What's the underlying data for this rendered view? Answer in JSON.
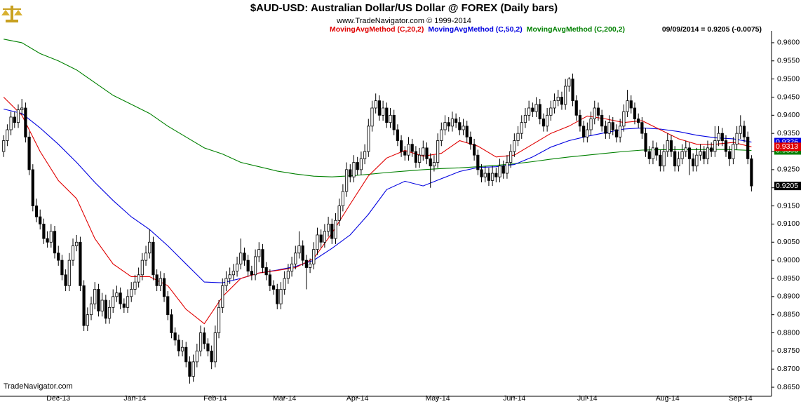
{
  "chart_data": {
    "type": "candlestick",
    "title": "$AUD-USD:  Australian Dollar/US Dollar @ FOREX  (Daily bars)",
    "subtitle": "www.TradeNavigator.com © 1999-2014",
    "status": "09/09/2014 = 0.9205 (-0.0075)",
    "footer": "TradeNavigator.com",
    "up_color": "#ffffff",
    "down_color": "#000000",
    "xlim": [
      -1,
      210.5
    ],
    "ylim": [
      0.8625,
      0.9625
    ],
    "xticks": [
      {
        "value": 15,
        "label": "Dec-13"
      },
      {
        "value": 36,
        "label": "Jan-14"
      },
      {
        "value": 58,
        "label": "Feb-14"
      },
      {
        "value": 77,
        "label": "Mar-14"
      },
      {
        "value": 97,
        "label": "Apr-14"
      },
      {
        "value": 119,
        "label": "May-14"
      },
      {
        "value": 140,
        "label": "Jun-14"
      },
      {
        "value": 160,
        "label": "Jul-14"
      },
      {
        "value": 182,
        "label": "Aug-14"
      },
      {
        "value": 202,
        "label": "Sep-14"
      }
    ],
    "yticks": [
      {
        "value": 0.865,
        "label": "0.8650"
      },
      {
        "value": 0.87,
        "label": "0.8700"
      },
      {
        "value": 0.875,
        "label": "0.8750"
      },
      {
        "value": 0.88,
        "label": "0.8800"
      },
      {
        "value": 0.885,
        "label": "0.8850"
      },
      {
        "value": 0.89,
        "label": "0.8900"
      },
      {
        "value": 0.895,
        "label": "0.8950"
      },
      {
        "value": 0.9,
        "label": "0.9000"
      },
      {
        "value": 0.905,
        "label": "0.9050"
      },
      {
        "value": 0.91,
        "label": "0.9100"
      },
      {
        "value": 0.915,
        "label": "0.9150"
      },
      {
        "value": 0.92,
        "label": "0.9200"
      },
      {
        "value": 0.925,
        "label": "0.9250"
      },
      {
        "value": 0.93,
        "label": "0.9300"
      },
      {
        "value": 0.935,
        "label": "0.9350"
      },
      {
        "value": 0.94,
        "label": "0.9400"
      },
      {
        "value": 0.945,
        "label": "0.9450"
      },
      {
        "value": 0.95,
        "label": "0.9500"
      },
      {
        "value": 0.955,
        "label": "0.9550"
      },
      {
        "value": 0.96,
        "label": "0.9600"
      }
    ],
    "open": [
      0.93,
      0.933,
      0.936,
      0.9395,
      0.938,
      0.9415,
      0.942,
      0.934,
      0.925,
      0.915,
      0.912,
      0.91,
      0.906,
      0.905,
      0.908,
      0.902,
      0.9,
      0.896,
      0.893,
      0.9,
      0.904,
      0.905,
      0.893,
      0.882,
      0.885,
      0.888,
      0.892,
      0.886,
      0.889,
      0.884,
      0.887,
      0.89,
      0.891,
      0.888,
      0.887,
      0.89,
      0.892,
      0.894,
      0.896,
      0.9,
      0.902,
      0.905,
      0.896,
      0.893,
      0.895,
      0.89,
      0.885,
      0.88,
      0.878,
      0.875,
      0.876,
      0.872,
      0.868,
      0.872,
      0.875,
      0.88,
      0.877,
      0.875,
      0.872,
      0.88,
      0.887,
      0.893,
      0.895,
      0.896,
      0.897,
      0.899,
      0.902,
      0.9,
      0.897,
      0.896,
      0.901,
      0.903,
      0.898,
      0.896,
      0.893,
      0.892,
      0.888,
      0.892,
      0.895,
      0.897,
      0.899,
      0.902,
      0.904,
      0.9,
      0.898,
      0.899,
      0.903,
      0.907,
      0.905,
      0.908,
      0.91,
      0.906,
      0.911,
      0.915,
      0.919,
      0.925,
      0.923,
      0.927,
      0.925,
      0.928,
      0.93,
      0.937,
      0.942,
      0.944,
      0.94,
      0.942,
      0.938,
      0.94,
      0.936,
      0.933,
      0.93,
      0.929,
      0.932,
      0.93,
      0.927,
      0.929,
      0.931,
      0.928,
      0.926,
      0.927,
      0.933,
      0.936,
      0.938,
      0.937,
      0.939,
      0.938,
      0.936,
      0.937,
      0.934,
      0.932,
      0.929,
      0.925,
      0.923,
      0.924,
      0.922,
      0.924,
      0.923,
      0.926,
      0.924,
      0.927,
      0.93,
      0.933,
      0.935,
      0.938,
      0.94,
      0.942,
      0.941,
      0.943,
      0.939,
      0.937,
      0.94,
      0.942,
      0.944,
      0.945,
      0.943,
      0.948,
      0.95,
      0.944,
      0.94,
      0.937,
      0.934,
      0.936,
      0.939,
      0.942,
      0.94,
      0.937,
      0.935,
      0.938,
      0.936,
      0.934,
      0.937,
      0.941,
      0.944,
      0.942,
      0.939,
      0.938,
      0.935,
      0.93,
      0.928,
      0.931,
      0.929,
      0.926,
      0.93,
      0.933,
      0.93,
      0.926,
      0.928,
      0.93,
      0.931,
      0.928,
      0.926,
      0.929,
      0.93,
      0.928,
      0.931,
      0.93,
      0.933,
      0.935,
      0.933,
      0.93,
      0.928,
      0.932,
      0.935,
      0.937,
      0.934,
      0.928
    ],
    "high": [
      0.9345,
      0.9375,
      0.941,
      0.941,
      0.943,
      0.9445,
      0.9435,
      0.9355,
      0.9265,
      0.917,
      0.914,
      0.9115,
      0.908,
      0.91,
      0.9095,
      0.904,
      0.9015,
      0.8975,
      0.902,
      0.906,
      0.907,
      0.9065,
      0.8945,
      0.887,
      0.89,
      0.894,
      0.8935,
      0.891,
      0.8905,
      0.889,
      0.892,
      0.893,
      0.8925,
      0.8895,
      0.892,
      0.894,
      0.896,
      0.898,
      0.902,
      0.904,
      0.9085,
      0.9065,
      0.8975,
      0.897,
      0.8965,
      0.8915,
      0.8865,
      0.8815,
      0.8795,
      0.878,
      0.8775,
      0.8735,
      0.874,
      0.877,
      0.882,
      0.8815,
      0.8785,
      0.8765,
      0.882,
      0.889,
      0.895,
      0.897,
      0.898,
      0.899,
      0.901,
      0.906,
      0.9035,
      0.9015,
      0.8985,
      0.903,
      0.905,
      0.9045,
      0.8995,
      0.8975,
      0.8945,
      0.8935,
      0.894,
      0.897,
      0.899,
      0.901,
      0.904,
      0.908,
      0.9055,
      0.9015,
      0.9005,
      0.905,
      0.909,
      0.9085,
      0.91,
      0.912,
      0.9115,
      0.913,
      0.917,
      0.921,
      0.927,
      0.9265,
      0.929,
      0.9285,
      0.93,
      0.932,
      0.939,
      0.944,
      0.946,
      0.9455,
      0.944,
      0.9435,
      0.942,
      0.9415,
      0.9375,
      0.9345,
      0.9315,
      0.934,
      0.9335,
      0.9315,
      0.931,
      0.933,
      0.9325,
      0.9295,
      0.929,
      0.935,
      0.938,
      0.94,
      0.9395,
      0.941,
      0.9405,
      0.9395,
      0.939,
      0.9385,
      0.9355,
      0.9335,
      0.9305,
      0.9265,
      0.926,
      0.9255,
      0.926,
      0.9255,
      0.928,
      0.9275,
      0.929,
      0.932,
      0.935,
      0.937,
      0.94,
      0.942,
      0.944,
      0.9435,
      0.945,
      0.9445,
      0.9405,
      0.942,
      0.944,
      0.946,
      0.947,
      0.9465,
      0.95,
      0.9505,
      0.9515,
      0.9455,
      0.9415,
      0.9385,
      0.938,
      0.941,
      0.944,
      0.9435,
      0.9415,
      0.9385,
      0.94,
      0.9395,
      0.9375,
      0.939,
      0.943,
      0.947,
      0.9455,
      0.9435,
      0.9405,
      0.9395,
      0.9365,
      0.9315,
      0.933,
      0.9325,
      0.9305,
      0.932,
      0.935,
      0.9345,
      0.9315,
      0.93,
      0.932,
      0.933,
      0.9325,
      0.9295,
      0.931,
      0.932,
      0.9315,
      0.933,
      0.9325,
      0.937,
      0.937,
      0.9365,
      0.9345,
      0.9315,
      0.934,
      0.937,
      0.94,
      0.9385,
      0.9355,
      0.929
    ],
    "low": [
      0.9285,
      0.9315,
      0.9345,
      0.9365,
      0.9365,
      0.94,
      0.9325,
      0.9235,
      0.9135,
      0.9105,
      0.9085,
      0.9045,
      0.9035,
      0.9035,
      0.9005,
      0.8985,
      0.8945,
      0.8915,
      0.8915,
      0.8985,
      0.9025,
      0.8915,
      0.8805,
      0.8805,
      0.8835,
      0.8865,
      0.8845,
      0.8845,
      0.8825,
      0.8825,
      0.8855,
      0.8885,
      0.8865,
      0.8855,
      0.8855,
      0.8885,
      0.8905,
      0.8925,
      0.8945,
      0.8985,
      0.9005,
      0.8945,
      0.8915,
      0.8915,
      0.8885,
      0.8835,
      0.8785,
      0.8765,
      0.8735,
      0.8735,
      0.8705,
      0.866,
      0.8665,
      0.8705,
      0.8735,
      0.8755,
      0.8735,
      0.87,
      0.8705,
      0.8785,
      0.8855,
      0.8915,
      0.8935,
      0.8945,
      0.8955,
      0.8975,
      0.8985,
      0.8955,
      0.8945,
      0.8945,
      0.8995,
      0.8965,
      0.8945,
      0.8915,
      0.8905,
      0.8865,
      0.8865,
      0.8905,
      0.8935,
      0.8955,
      0.8975,
      0.9005,
      0.8985,
      0.892,
      0.8965,
      0.8975,
      0.9015,
      0.9035,
      0.9035,
      0.9065,
      0.9045,
      0.9045,
      0.9095,
      0.9135,
      0.9175,
      0.9215,
      0.9215,
      0.9235,
      0.9235,
      0.9265,
      0.9285,
      0.9355,
      0.9405,
      0.9385,
      0.9385,
      0.9365,
      0.9365,
      0.9345,
      0.9315,
      0.9285,
      0.9275,
      0.9275,
      0.9285,
      0.9255,
      0.9255,
      0.9275,
      0.9265,
      0.92,
      0.9245,
      0.9255,
      0.9315,
      0.9345,
      0.9355,
      0.9355,
      0.9365,
      0.9345,
      0.9345,
      0.9325,
      0.9305,
      0.9275,
      0.9235,
      0.9215,
      0.9215,
      0.9205,
      0.9205,
      0.9215,
      0.9215,
      0.9225,
      0.9225,
      0.9255,
      0.9285,
      0.9315,
      0.9335,
      0.9365,
      0.9385,
      0.9395,
      0.9395,
      0.9375,
      0.9355,
      0.9355,
      0.9385,
      0.9405,
      0.9425,
      0.9415,
      0.9415,
      0.9465,
      0.9425,
      0.9385,
      0.9355,
      0.9325,
      0.9325,
      0.9345,
      0.9375,
      0.9385,
      0.9355,
      0.9335,
      0.9335,
      0.9345,
      0.9325,
      0.9325,
      0.9355,
      0.9395,
      0.9405,
      0.9375,
      0.9365,
      0.9335,
      0.9285,
      0.9265,
      0.9265,
      0.9275,
      0.9245,
      0.9245,
      0.9285,
      0.9285,
      0.9245,
      0.9245,
      0.9265,
      0.9285,
      0.9235,
      0.9245,
      0.9245,
      0.9275,
      0.9265,
      0.9265,
      0.9285,
      0.9285,
      0.9315,
      0.9315,
      0.9285,
      0.926,
      0.9265,
      0.9305,
      0.9335,
      0.9325,
      0.9265,
      0.919
    ],
    "close": [
      0.933,
      0.936,
      0.9395,
      0.938,
      0.9415,
      0.942,
      0.934,
      0.925,
      0.915,
      0.912,
      0.91,
      0.906,
      0.905,
      0.908,
      0.902,
      0.9,
      0.896,
      0.893,
      0.9,
      0.904,
      0.905,
      0.893,
      0.882,
      0.885,
      0.888,
      0.892,
      0.886,
      0.889,
      0.884,
      0.887,
      0.89,
      0.891,
      0.888,
      0.887,
      0.89,
      0.892,
      0.894,
      0.896,
      0.9,
      0.902,
      0.905,
      0.896,
      0.893,
      0.895,
      0.89,
      0.885,
      0.88,
      0.878,
      0.875,
      0.876,
      0.872,
      0.868,
      0.872,
      0.875,
      0.88,
      0.877,
      0.875,
      0.872,
      0.88,
      0.887,
      0.893,
      0.895,
      0.896,
      0.897,
      0.899,
      0.902,
      0.9,
      0.897,
      0.896,
      0.901,
      0.903,
      0.898,
      0.896,
      0.893,
      0.892,
      0.888,
      0.892,
      0.895,
      0.897,
      0.899,
      0.902,
      0.904,
      0.9,
      0.898,
      0.899,
      0.903,
      0.907,
      0.905,
      0.908,
      0.91,
      0.906,
      0.911,
      0.915,
      0.919,
      0.925,
      0.923,
      0.927,
      0.925,
      0.928,
      0.93,
      0.937,
      0.942,
      0.944,
      0.94,
      0.942,
      0.938,
      0.94,
      0.936,
      0.933,
      0.93,
      0.929,
      0.932,
      0.93,
      0.927,
      0.929,
      0.931,
      0.928,
      0.926,
      0.927,
      0.933,
      0.936,
      0.938,
      0.937,
      0.939,
      0.938,
      0.936,
      0.937,
      0.934,
      0.932,
      0.929,
      0.925,
      0.923,
      0.924,
      0.922,
      0.924,
      0.923,
      0.926,
      0.924,
      0.927,
      0.93,
      0.933,
      0.935,
      0.938,
      0.94,
      0.942,
      0.941,
      0.943,
      0.939,
      0.937,
      0.94,
      0.942,
      0.944,
      0.945,
      0.943,
      0.948,
      0.95,
      0.944,
      0.94,
      0.937,
      0.934,
      0.936,
      0.939,
      0.942,
      0.94,
      0.937,
      0.935,
      0.938,
      0.936,
      0.934,
      0.937,
      0.941,
      0.944,
      0.942,
      0.939,
      0.938,
      0.935,
      0.93,
      0.928,
      0.931,
      0.929,
      0.926,
      0.93,
      0.933,
      0.93,
      0.926,
      0.928,
      0.93,
      0.931,
      0.928,
      0.926,
      0.929,
      0.93,
      0.928,
      0.931,
      0.93,
      0.933,
      0.935,
      0.933,
      0.93,
      0.928,
      0.932,
      0.935,
      0.937,
      0.934,
      0.928,
      0.9205
    ],
    "series": [
      {
        "name": "MovingAvgMethod (C,200,2)",
        "color": "#008000",
        "x": [
          0,
          5,
          10,
          15,
          20,
          25,
          30,
          35,
          40,
          45,
          50,
          55,
          60,
          65,
          70,
          75,
          80,
          85,
          90,
          95,
          100,
          105,
          110,
          115,
          120,
          125,
          130,
          135,
          140,
          145,
          150,
          155,
          160,
          165,
          170,
          175,
          180,
          185,
          190,
          195,
          200,
          205
        ],
        "values": [
          0.961,
          0.96,
          0.957,
          0.955,
          0.9525,
          0.949,
          0.9455,
          0.943,
          0.9405,
          0.937,
          0.934,
          0.931,
          0.9293,
          0.927,
          0.9258,
          0.9246,
          0.9238,
          0.9232,
          0.923,
          0.9233,
          0.9237,
          0.9242,
          0.9246,
          0.925,
          0.9253,
          0.9255,
          0.9258,
          0.9262,
          0.9266,
          0.9272,
          0.9279,
          0.9285,
          0.929,
          0.9295,
          0.93,
          0.9304,
          0.9305,
          0.9305,
          0.9305,
          0.9306,
          0.9305,
          0.9303
        ]
      },
      {
        "name": "MovingAvgMethod (C,50,2)",
        "color": "#0000e0",
        "x": [
          0,
          5,
          10,
          15,
          20,
          25,
          30,
          35,
          40,
          45,
          50,
          55,
          60,
          65,
          70,
          75,
          80,
          85,
          90,
          95,
          100,
          105,
          110,
          115,
          120,
          125,
          130,
          135,
          140,
          145,
          150,
          155,
          160,
          165,
          170,
          175,
          180,
          185,
          190,
          195,
          200,
          205
        ],
        "values": [
          0.9417,
          0.9405,
          0.9365,
          0.932,
          0.927,
          0.9215,
          0.9165,
          0.912,
          0.9085,
          0.904,
          0.899,
          0.894,
          0.8938,
          0.895,
          0.8965,
          0.8973,
          0.8983,
          0.9,
          0.9033,
          0.907,
          0.9127,
          0.9195,
          0.9218,
          0.9205,
          0.9225,
          0.9245,
          0.9256,
          0.9258,
          0.9264,
          0.9285,
          0.9312,
          0.933,
          0.9342,
          0.9352,
          0.9362,
          0.9365,
          0.9362,
          0.9355,
          0.9345,
          0.9338,
          0.9335,
          0.9326
        ]
      },
      {
        "name": "MovingAvgMethod (C,20,2)",
        "color": "#e00000",
        "x": [
          0,
          5,
          10,
          15,
          20,
          25,
          30,
          35,
          40,
          45,
          50,
          55,
          60,
          65,
          70,
          75,
          80,
          85,
          90,
          95,
          100,
          105,
          110,
          115,
          120,
          125,
          130,
          135,
          140,
          145,
          150,
          155,
          160,
          165,
          170,
          175,
          180,
          185,
          190,
          195,
          200,
          205
        ],
        "values": [
          0.945,
          0.94,
          0.93,
          0.922,
          0.917,
          0.906,
          0.899,
          0.8955,
          0.8955,
          0.893,
          0.8865,
          0.8825,
          0.89,
          0.895,
          0.8965,
          0.8972,
          0.898,
          0.9005,
          0.9075,
          0.9155,
          0.9233,
          0.9282,
          0.9303,
          0.9287,
          0.9295,
          0.933,
          0.9315,
          0.9285,
          0.929,
          0.932,
          0.935,
          0.937,
          0.9398,
          0.939,
          0.938,
          0.9385,
          0.936,
          0.9335,
          0.932,
          0.932,
          0.9325,
          0.9313
        ]
      }
    ]
  }
}
